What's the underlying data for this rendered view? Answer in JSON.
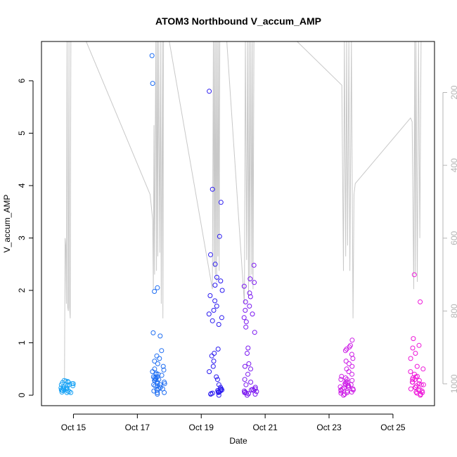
{
  "chart_data": {
    "type": "scatter",
    "title": "ATOM3 Northbound V_accum_AMP",
    "xlabel": "Date",
    "ylabel": "V_accum_AMP",
    "x_ticks": [
      {
        "day": 15,
        "label": "Oct 15"
      },
      {
        "day": 17,
        "label": "Oct 17"
      },
      {
        "day": 19,
        "label": "Oct 19"
      },
      {
        "day": 21,
        "label": "Oct 21"
      },
      {
        "day": 23,
        "label": "Oct 23"
      },
      {
        "day": 25,
        "label": "Oct 25"
      }
    ],
    "y_ticks": [
      0,
      1,
      2,
      3,
      4,
      5,
      6
    ],
    "y_right_ticks": [
      200,
      400,
      600,
      800,
      1000
    ],
    "xlim_days": [
      14.0,
      26.3
    ],
    "ylim": [
      -0.2,
      6.75
    ],
    "y_right_lim": [
      1060,
      60
    ],
    "colors": {
      "line": "#c8c8c8",
      "right_axis": "#b5b5b5"
    },
    "clusters": [
      {
        "center": 14.8,
        "color": "#17a2f5",
        "values": [
          0.05,
          0.08,
          0.1,
          0.12,
          0.15,
          0.18,
          0.2,
          0.22,
          0.25,
          0.27,
          0.28,
          0.05,
          0.07,
          0.1,
          0.13,
          0.16,
          0.2,
          0.24,
          0.26,
          0.12,
          0.09,
          0.14,
          0.18,
          0.22,
          0.06
        ]
      },
      {
        "center": 17.65,
        "color": "#1f6ef2",
        "values": [
          0.02,
          0.05,
          0.08,
          0.1,
          0.12,
          0.15,
          0.18,
          0.2,
          0.22,
          0.25,
          0.28,
          0.3,
          0.32,
          0.35,
          0.38,
          0.4,
          0.42,
          0.45,
          0.48,
          0.5,
          0.55,
          0.6,
          0.65,
          0.7,
          0.75,
          0.85,
          1.13,
          1.19,
          1.98,
          2.05,
          5.95,
          6.48,
          0.1,
          0.15,
          0.2,
          0.25,
          0.3,
          0.35,
          0.4,
          0.05,
          0.12,
          0.18,
          0.22,
          0.28,
          0.33
        ]
      },
      {
        "center": 19.45,
        "color": "#2b1bf0",
        "values": [
          0.0,
          0.02,
          0.04,
          0.06,
          0.08,
          0.1,
          0.12,
          0.15,
          0.2,
          0.3,
          0.35,
          0.45,
          0.55,
          0.65,
          0.75,
          0.8,
          0.88,
          1.35,
          1.42,
          1.48,
          1.55,
          1.62,
          1.7,
          1.8,
          1.9,
          2.0,
          2.1,
          2.18,
          2.25,
          2.5,
          2.68,
          3.03,
          3.68,
          3.93,
          5.8,
          0.03,
          0.05,
          0.07,
          0.09,
          0.11
        ]
      },
      {
        "center": 20.55,
        "color": "#7a17f0",
        "values": [
          0.0,
          0.02,
          0.04,
          0.05,
          0.06,
          0.08,
          0.1,
          0.12,
          0.15,
          0.2,
          0.25,
          0.3,
          0.4,
          0.5,
          0.55,
          0.6,
          0.8,
          0.9,
          1.2,
          1.3,
          1.4,
          1.48,
          1.55,
          1.62,
          1.7,
          1.78,
          1.88,
          1.95,
          2.08,
          2.15,
          2.22,
          2.48,
          0.03,
          0.07,
          0.09,
          0.11
        ]
      },
      {
        "center": 23.55,
        "color": "#cc1ae6",
        "values": [
          0.0,
          0.02,
          0.04,
          0.06,
          0.08,
          0.1,
          0.12,
          0.14,
          0.16,
          0.18,
          0.2,
          0.22,
          0.25,
          0.28,
          0.3,
          0.33,
          0.36,
          0.4,
          0.45,
          0.5,
          0.55,
          0.6,
          0.65,
          0.7,
          0.78,
          0.85,
          0.88,
          0.92,
          0.95,
          1.05,
          0.05,
          0.1,
          0.15,
          0.2,
          0.25,
          0.3,
          0.12,
          0.08,
          0.18,
          0.22
        ]
      },
      {
        "center": 25.75,
        "color": "#ee17d9",
        "values": [
          0.0,
          0.02,
          0.04,
          0.06,
          0.08,
          0.1,
          0.12,
          0.15,
          0.18,
          0.2,
          0.22,
          0.25,
          0.28,
          0.3,
          0.33,
          0.36,
          0.4,
          0.45,
          0.5,
          0.55,
          0.7,
          0.8,
          0.9,
          0.95,
          1.08,
          1.78,
          2.3,
          0.05,
          0.1,
          0.15,
          0.2,
          0.25,
          0.3,
          0.35
        ]
      }
    ],
    "line_series": [
      [
        14.72,
        1000
      ],
      [
        14.74,
        600
      ],
      [
        14.76,
        620
      ],
      [
        14.78,
        780
      ],
      [
        14.8,
        60
      ],
      [
        14.82,
        790
      ],
      [
        14.84,
        800
      ],
      [
        14.86,
        60
      ],
      [
        14.88,
        790
      ],
      [
        14.9,
        820
      ],
      [
        14.92,
        60
      ],
      [
        14.95,
        60
      ],
      [
        15.4,
        60
      ],
      [
        17.4,
        480
      ],
      [
        17.48,
        550
      ],
      [
        17.5,
        740
      ],
      [
        17.52,
        290
      ],
      [
        17.54,
        700
      ],
      [
        17.56,
        320
      ],
      [
        17.58,
        60
      ],
      [
        17.6,
        690
      ],
      [
        17.62,
        60
      ],
      [
        17.64,
        650
      ],
      [
        17.66,
        60
      ],
      [
        17.7,
        640
      ],
      [
        17.72,
        60
      ],
      [
        17.75,
        780
      ],
      [
        17.78,
        60
      ],
      [
        17.8,
        820
      ],
      [
        17.82,
        60
      ],
      [
        18.0,
        60
      ],
      [
        19.35,
        740
      ],
      [
        19.38,
        60
      ],
      [
        19.4,
        680
      ],
      [
        19.42,
        60
      ],
      [
        19.44,
        700
      ],
      [
        19.46,
        60
      ],
      [
        19.48,
        720
      ],
      [
        19.5,
        60
      ],
      [
        19.52,
        650
      ],
      [
        19.54,
        60
      ],
      [
        19.56,
        690
      ],
      [
        19.58,
        60
      ],
      [
        19.62,
        60
      ],
      [
        19.8,
        60
      ],
      [
        20.35,
        780
      ],
      [
        20.38,
        60
      ],
      [
        20.42,
        660
      ],
      [
        20.45,
        60
      ],
      [
        20.48,
        760
      ],
      [
        20.5,
        60
      ],
      [
        20.52,
        720
      ],
      [
        20.55,
        60
      ],
      [
        20.58,
        700
      ],
      [
        20.6,
        60
      ],
      [
        20.62,
        740
      ],
      [
        20.65,
        60
      ],
      [
        22.0,
        60
      ],
      [
        23.4,
        180
      ],
      [
        23.45,
        690
      ],
      [
        23.48,
        60
      ],
      [
        23.52,
        650
      ],
      [
        23.55,
        60
      ],
      [
        23.58,
        620
      ],
      [
        23.62,
        60
      ],
      [
        23.65,
        690
      ],
      [
        23.7,
        60
      ],
      [
        23.75,
        820
      ],
      [
        23.78,
        480
      ],
      [
        23.82,
        450
      ],
      [
        25.55,
        270
      ],
      [
        25.6,
        280
      ],
      [
        25.65,
        740
      ],
      [
        25.68,
        60
      ],
      [
        25.7,
        700
      ],
      [
        25.72,
        60
      ],
      [
        25.76,
        720
      ],
      [
        25.8,
        60
      ],
      [
        25.84,
        600
      ],
      [
        25.88,
        60
      ]
    ]
  }
}
